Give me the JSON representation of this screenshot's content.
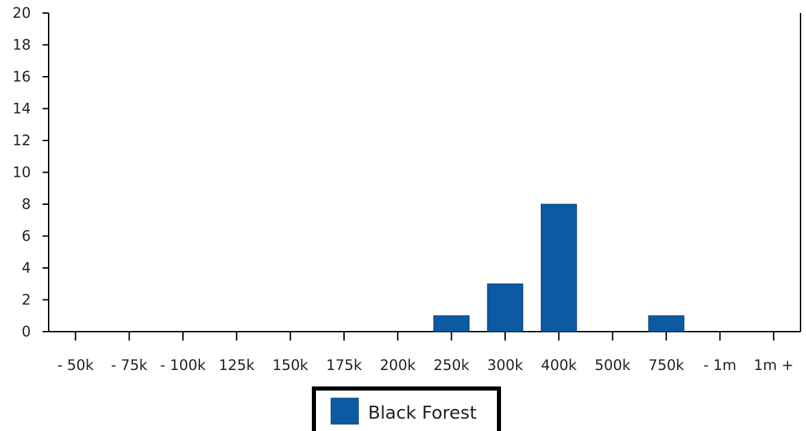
{
  "chart_data": {
    "type": "bar",
    "categories": [
      "- 50k",
      "- 75k",
      "- 100k",
      "125k",
      "150k",
      "175k",
      "200k",
      "250k",
      "300k",
      "400k",
      "500k",
      "750k",
      "- 1m",
      "1m +"
    ],
    "series": [
      {
        "name": "Black Forest",
        "color": "#0b5aa2",
        "values": [
          0,
          0,
          0,
          0,
          0,
          0,
          0,
          1,
          3,
          8,
          0,
          1,
          0,
          0
        ]
      }
    ],
    "ylim": [
      0,
      20
    ],
    "yticks": [
      0,
      2,
      4,
      6,
      8,
      10,
      12,
      14,
      16,
      18,
      20
    ],
    "grid": false,
    "legend": "bottom-center"
  }
}
